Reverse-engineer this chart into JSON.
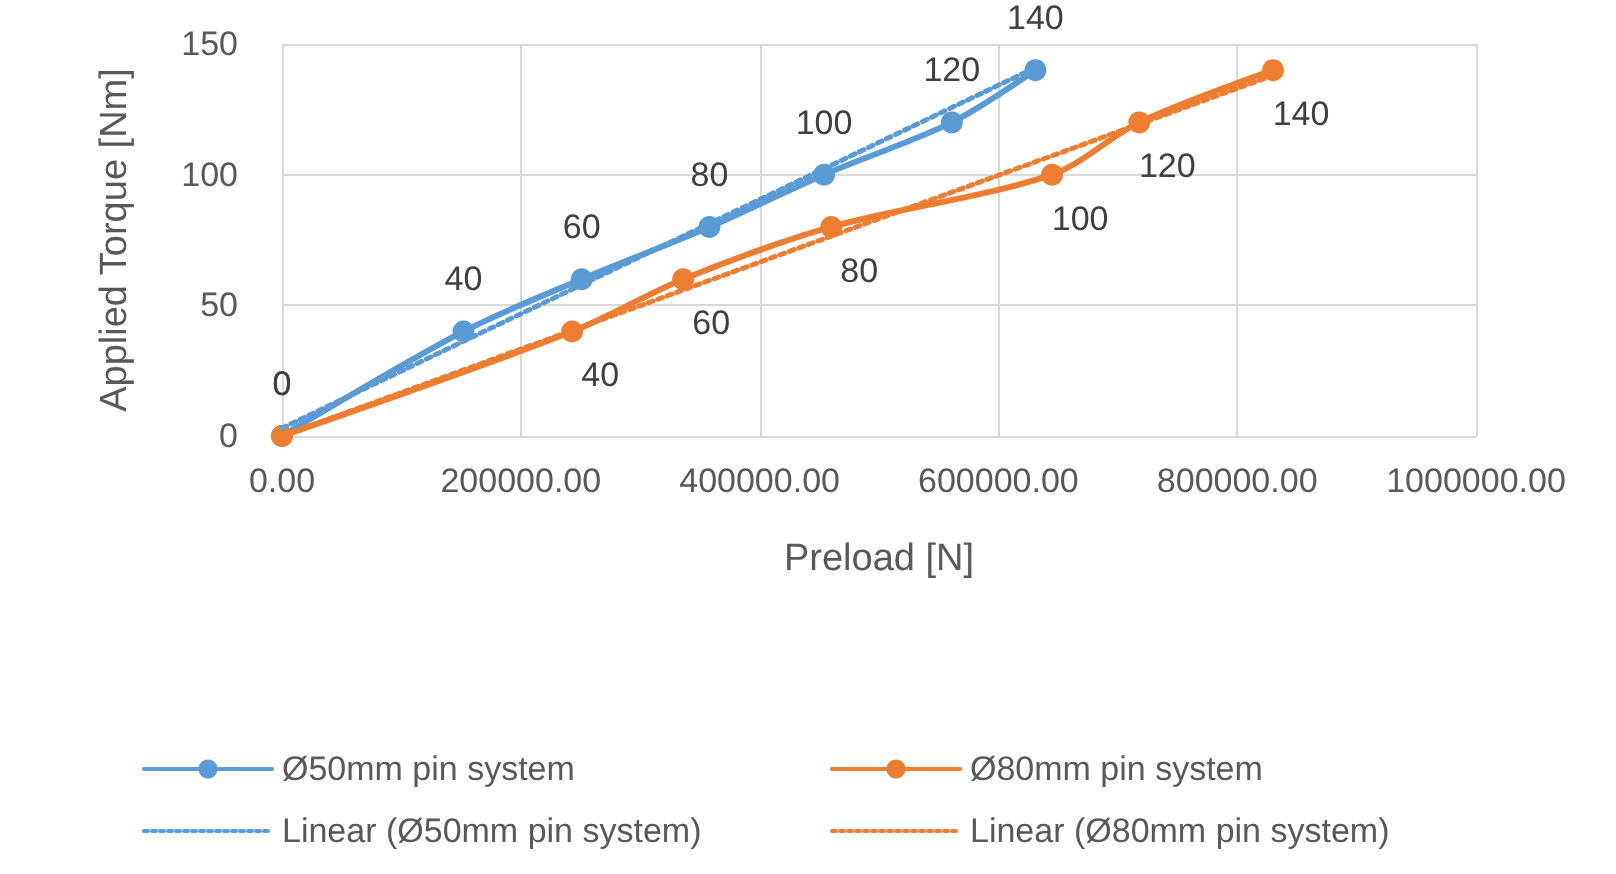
{
  "chart_data": {
    "type": "line",
    "xlabel": "Preload [N]",
    "ylabel": "Applied Torque [Nm]",
    "xlim": [
      0,
      1000000
    ],
    "xticks": [
      {
        "value": 0,
        "label": "0.00"
      },
      {
        "value": 200000,
        "label": "200000.00"
      },
      {
        "value": 400000,
        "label": "400000.00"
      },
      {
        "value": 600000,
        "label": "600000.00"
      },
      {
        "value": 800000,
        "label": "800000.00"
      },
      {
        "value": 1000000,
        "label": "1000000.00"
      }
    ],
    "ylim": [
      0,
      150
    ],
    "yticks": [
      0,
      50,
      100,
      150
    ],
    "grid": true,
    "legend": "bottom",
    "series": [
      {
        "name": "Ø50mm pin system",
        "color": "#5b9bd5",
        "marker": "circle",
        "line_style": "solid",
        "x": [
          0,
          152000,
          251000,
          358000,
          454000,
          561000,
          631000
        ],
        "values": [
          0,
          40,
          60,
          80,
          100,
          120,
          140
        ],
        "value_labels": [
          "0",
          "40",
          "60",
          "80",
          "100",
          "120",
          "140"
        ]
      },
      {
        "name": "Ø80mm pin system",
        "color": "#ed7d31",
        "marker": "circle",
        "line_style": "solid",
        "x": [
          0,
          243000,
          336000,
          460000,
          645000,
          718000,
          830000
        ],
        "values": [
          0,
          40,
          60,
          80,
          100,
          120,
          140
        ],
        "value_labels": [
          "0",
          "40",
          "60",
          "80",
          "100",
          "120",
          "140"
        ]
      },
      {
        "name": "Linear (Ø50mm pin system)",
        "color": "#5b9bd5",
        "marker": "none",
        "line_style": "dotted",
        "x": [
          0,
          631000
        ],
        "values": [
          3,
          141
        ]
      },
      {
        "name": "Linear (Ø80mm pin system)",
        "color": "#ed7d31",
        "marker": "none",
        "line_style": "dotted",
        "x": [
          0,
          830000
        ],
        "values": [
          0,
          138
        ]
      }
    ]
  }
}
